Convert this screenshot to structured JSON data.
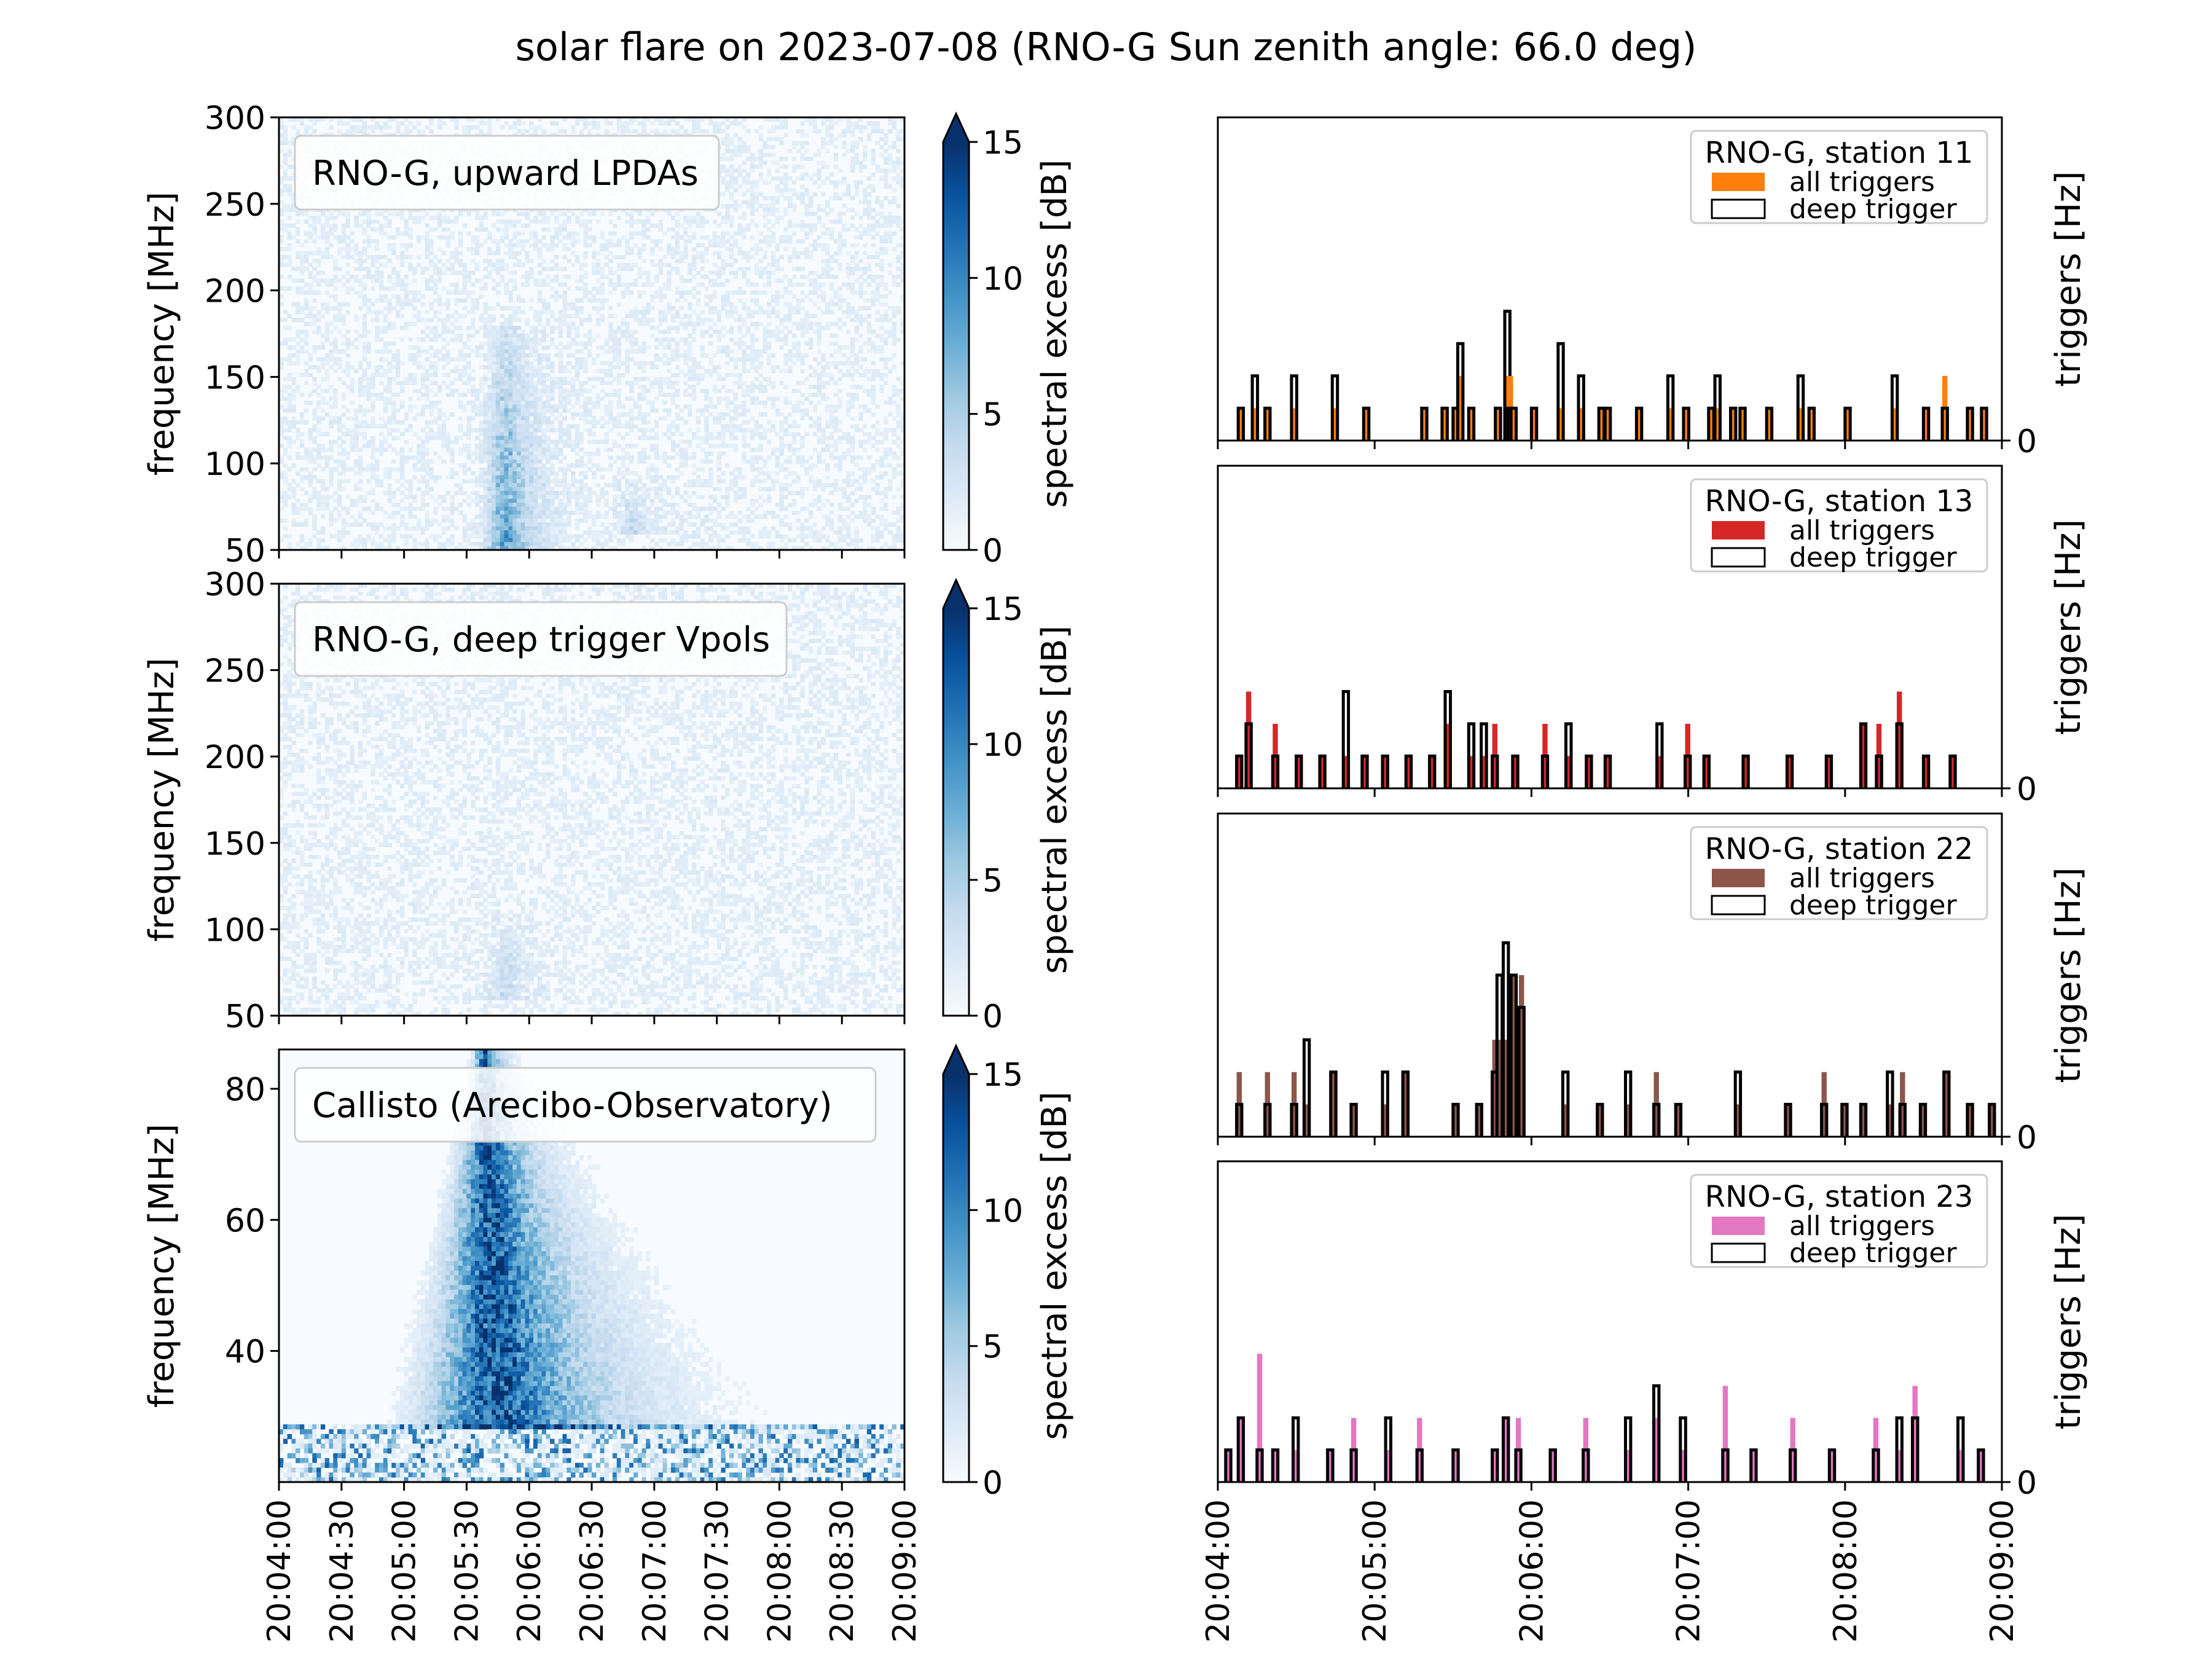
{
  "figure": {
    "title": "solar flare on 2023-07-08 (RNO-G Sun zenith angle: 66.0 deg)"
  },
  "colormap": {
    "name": "Blues",
    "stops": [
      "#f7fbff",
      "#deebf7",
      "#c6dbef",
      "#9ecae1",
      "#6baed6",
      "#4292c6",
      "#2171b5",
      "#08519c",
      "#08306b"
    ]
  },
  "time_axis": {
    "start": "20:04:00",
    "end": "20:09:00",
    "left_ticks": [
      "20:04:00",
      "20:04:30",
      "20:05:00",
      "20:05:30",
      "20:06:00",
      "20:06:30",
      "20:07:00",
      "20:07:30",
      "20:08:00",
      "20:08:30",
      "20:09:00"
    ],
    "right_ticks": [
      "20:04:00",
      "20:05:00",
      "20:06:00",
      "20:07:00",
      "20:08:00",
      "20:09:00"
    ]
  },
  "chart_data": [
    {
      "type": "heatmap",
      "label": "RNO-G, upward LPDAs",
      "ylabel": "frequency [MHz]",
      "ylim": [
        50,
        300
      ],
      "yticks": [
        "50",
        "100",
        "150",
        "200",
        "250",
        "300"
      ],
      "colorbar": {
        "label": "spectral excess [dB]",
        "range": [
          0,
          15
        ],
        "ticks": [
          "0",
          "5",
          "10",
          "15"
        ],
        "extend": "max"
      },
      "features": [
        {
          "time": "20:05:50",
          "freq_range": [
            50,
            180
          ],
          "peak_db": 9,
          "note": "burst"
        },
        {
          "time": "20:06:50",
          "freq_range": [
            60,
            90
          ],
          "peak_db": 3
        }
      ]
    },
    {
      "type": "heatmap",
      "label": "RNO-G, deep trigger Vpols",
      "ylabel": "frequency [MHz]",
      "ylim": [
        50,
        300
      ],
      "yticks": [
        "50",
        "100",
        "150",
        "200",
        "250",
        "300"
      ],
      "colorbar": {
        "label": "spectral excess [dB]",
        "range": [
          0,
          15
        ],
        "ticks": [
          "0",
          "5",
          "10",
          "15"
        ],
        "extend": "max"
      },
      "features": [
        {
          "time": "20:05:50",
          "freq_range": [
            60,
            110
          ],
          "peak_db": 3
        }
      ]
    },
    {
      "type": "heatmap",
      "label": "Callisto (Arecibo-Observatory)",
      "ylabel": "frequency [MHz]",
      "ylim": [
        20,
        86
      ],
      "yticks": [
        "40",
        "60",
        "80"
      ],
      "colorbar": {
        "label": "spectral excess [dB]",
        "range": [
          0,
          15
        ],
        "ticks": [
          "0",
          "5",
          "10",
          "15"
        ],
        "extend": "max"
      },
      "features": [
        {
          "time": "20:05:50",
          "freq_range": [
            28,
            86
          ],
          "peak_db": 15,
          "note": "type III burst drifting to lower frequency"
        }
      ]
    },
    {
      "type": "bar",
      "legend_title": "RNO-G, station 11",
      "series_labels": [
        "all triggers",
        "deep trigger"
      ],
      "color": "#ff7f0e",
      "ylabel": "triggers [Hz]",
      "yticks": [
        "0"
      ],
      "bins_minutes": [
        0.13,
        0.22,
        0.3,
        0.47,
        0.73,
        0.93,
        1.3,
        1.43,
        1.5,
        1.53,
        1.6,
        1.77,
        1.83,
        1.85,
        1.87,
        2.0,
        2.17,
        2.3,
        2.43,
        2.47,
        2.67,
        2.87,
        2.97,
        3.13,
        3.17,
        3.27,
        3.33,
        3.5,
        3.7,
        3.77,
        4.0,
        4.3,
        4.5,
        4.62,
        4.78,
        4.87
      ],
      "all_triggers_level": [
        1,
        1,
        1,
        1,
        1,
        1,
        1,
        1,
        1,
        2,
        1,
        1,
        2,
        2,
        1,
        1,
        1,
        1,
        1,
        1,
        1,
        1,
        1,
        1,
        1,
        1,
        1,
        1,
        1,
        1,
        1,
        1,
        1,
        2,
        1,
        1
      ],
      "deep_trigger_level": [
        1,
        2,
        1,
        2,
        2,
        1,
        1,
        1,
        1,
        3,
        1,
        1,
        4,
        1,
        1,
        1,
        3,
        2,
        1,
        1,
        1,
        2,
        1,
        1,
        2,
        1,
        1,
        1,
        2,
        1,
        1,
        2,
        1,
        1,
        1,
        1
      ]
    },
    {
      "type": "bar",
      "legend_title": "RNO-G, station 13",
      "series_labels": [
        "all triggers",
        "deep trigger"
      ],
      "color": "#d62728",
      "ylabel": "triggers [Hz]",
      "yticks": [
        "0"
      ],
      "bins_minutes": [
        0.12,
        0.18,
        0.35,
        0.5,
        0.65,
        0.8,
        0.92,
        1.05,
        1.2,
        1.35,
        1.45,
        1.6,
        1.68,
        1.75,
        1.88,
        2.07,
        2.22,
        2.35,
        2.47,
        2.8,
        2.98,
        3.1,
        3.35,
        3.63,
        3.88,
        4.1,
        4.2,
        4.33,
        4.5,
        4.67
      ],
      "all_triggers_level": [
        1,
        3,
        2,
        1,
        1,
        1,
        1,
        1,
        1,
        1,
        2,
        1,
        1,
        2,
        1,
        2,
        1,
        1,
        1,
        1,
        2,
        1,
        1,
        1,
        1,
        2,
        2,
        3,
        1,
        1
      ],
      "deep_trigger_level": [
        1,
        2,
        1,
        1,
        1,
        3,
        1,
        1,
        1,
        1,
        3,
        2,
        2,
        1,
        1,
        1,
        2,
        1,
        1,
        2,
        1,
        1,
        1,
        1,
        1,
        2,
        1,
        2,
        1,
        1
      ]
    },
    {
      "type": "bar",
      "legend_title": "RNO-G, station 22",
      "series_labels": [
        "all triggers",
        "deep trigger"
      ],
      "color": "#8c564b",
      "ylabel": "triggers [Hz]",
      "yticks": [
        "0"
      ],
      "bins_minutes": [
        0.12,
        0.3,
        0.47,
        0.55,
        0.72,
        0.85,
        1.05,
        1.18,
        1.5,
        1.65,
        1.75,
        1.78,
        1.82,
        1.87,
        1.92,
        2.2,
        2.42,
        2.6,
        2.78,
        2.92,
        3.3,
        3.62,
        3.85,
        3.98,
        4.1,
        4.27,
        4.35,
        4.48,
        4.63,
        4.78,
        4.92
      ],
      "all_triggers_level": [
        2,
        2,
        2,
        1,
        2,
        1,
        1,
        2,
        1,
        1,
        3,
        3,
        3,
        5,
        5,
        1,
        1,
        1,
        2,
        1,
        1,
        1,
        2,
        1,
        1,
        1,
        2,
        1,
        2,
        1,
        1
      ],
      "deep_trigger_level": [
        1,
        1,
        1,
        3,
        2,
        1,
        2,
        2,
        1,
        1,
        2,
        5,
        6,
        5,
        4,
        2,
        1,
        2,
        1,
        1,
        2,
        1,
        1,
        1,
        1,
        2,
        1,
        1,
        2,
        1,
        1
      ]
    },
    {
      "type": "bar",
      "legend_title": "RNO-G, station 23",
      "series_labels": [
        "all triggers",
        "deep trigger"
      ],
      "color": "#e377c2",
      "ylabel": "triggers [Hz]",
      "yticks": [
        "0"
      ],
      "bins_minutes": [
        0.05,
        0.13,
        0.25,
        0.35,
        0.48,
        0.7,
        0.85,
        1.07,
        1.27,
        1.5,
        1.75,
        1.82,
        1.9,
        2.12,
        2.33,
        2.6,
        2.78,
        2.95,
        3.22,
        3.4,
        3.65,
        3.9,
        4.18,
        4.33,
        4.43,
        4.72,
        4.85
      ],
      "all_triggers_level": [
        1,
        2,
        4,
        1,
        1,
        1,
        2,
        1,
        2,
        1,
        1,
        2,
        2,
        1,
        2,
        1,
        2,
        1,
        3,
        1,
        2,
        1,
        2,
        1,
        3,
        1,
        1
      ],
      "deep_trigger_level": [
        1,
        2,
        1,
        1,
        2,
        1,
        1,
        2,
        1,
        1,
        1,
        2,
        1,
        1,
        1,
        2,
        3,
        2,
        1,
        1,
        1,
        1,
        1,
        2,
        2,
        2,
        1
      ]
    }
  ]
}
